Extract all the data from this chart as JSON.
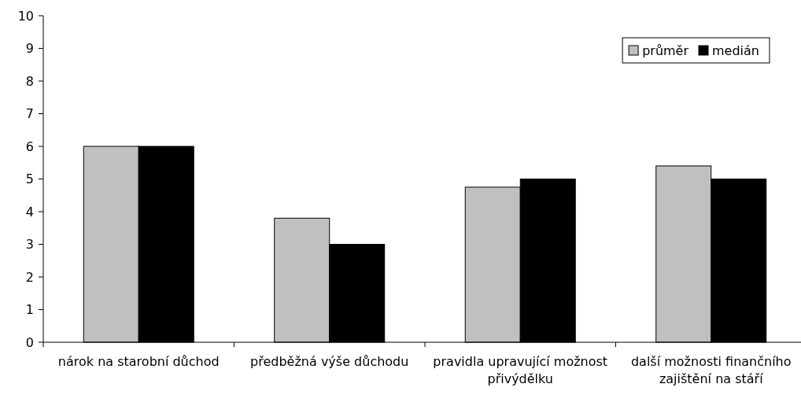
{
  "chart_data": {
    "type": "bar",
    "categories": [
      "nárok na starobní důchod",
      "předběžná výše důchodu",
      "pravidla upravující možnost přivýdělku",
      "další možnosti finančního zajištění na stáří"
    ],
    "series": [
      {
        "name": "průměr",
        "color": "#c0c0c0",
        "values": [
          6.0,
          3.8,
          4.75,
          5.4
        ]
      },
      {
        "name": "medián",
        "color": "#000000",
        "values": [
          6,
          3,
          5,
          5
        ]
      }
    ],
    "ylim": [
      0,
      10
    ],
    "yticks": [
      0,
      1,
      2,
      3,
      4,
      5,
      6,
      7,
      8,
      9,
      10
    ],
    "grid": false,
    "legend": "top right"
  }
}
